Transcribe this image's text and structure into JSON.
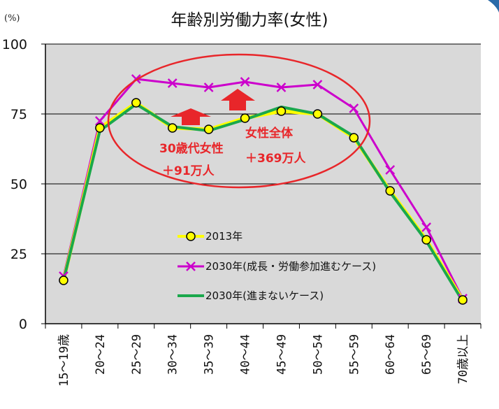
{
  "chart_data": {
    "type": "line",
    "title": "年齢別労働力率(女性)",
    "unit_label": "(%)",
    "ylim": [
      0,
      100
    ],
    "yticks": [
      "0",
      "25",
      "50",
      "75",
      "100"
    ],
    "categories": [
      "15〜19歳",
      "20〜24",
      "25〜29",
      "30〜34",
      "35〜39",
      "40〜44",
      "45〜49",
      "50〜54",
      "55〜59",
      "60〜64",
      "65〜69",
      "70歳以上"
    ],
    "series": [
      {
        "name": "2013年",
        "color": "#ffff00",
        "marker": "circle",
        "values": [
          15.5,
          70,
          79,
          70,
          69.5,
          73.5,
          76,
          75,
          66.5,
          47.5,
          30,
          8.5
        ]
      },
      {
        "name": "2030年(成長・労働参加進むケース)",
        "color": "#cc00cc",
        "marker": "x",
        "values": [
          17,
          72.5,
          87.5,
          86,
          84.5,
          86.5,
          84.5,
          85.5,
          77,
          55,
          34.5,
          9
        ]
      },
      {
        "name": "2030年(進まないケース)",
        "color": "#1aa84c",
        "marker": "none",
        "values": [
          15.5,
          69,
          78.5,
          70.5,
          69,
          73,
          77.5,
          75,
          67,
          47,
          29.5,
          8
        ]
      }
    ],
    "grid": "horizontal",
    "plot_background": "#d9d9d9",
    "annotations": [
      {
        "line1": "30歳代女性",
        "line2": "＋91万人"
      },
      {
        "line1": "女性全体",
        "line2": "＋369万人"
      }
    ],
    "highlight_color": "#e8262a"
  }
}
